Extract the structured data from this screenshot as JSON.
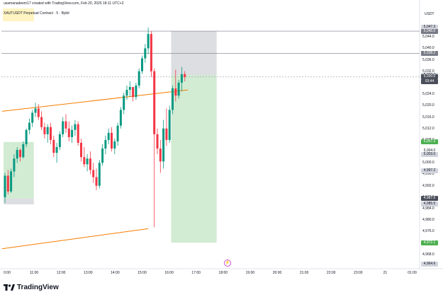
{
  "header": {
    "published": "usamanadeem17 created with TradingView.com, Feb 20, 2026 18:11 UTC+2"
  },
  "symbol": {
    "legend": "XAUTUSDT Perpetual Contract · 5 · Bybit"
  },
  "y_axis": {
    "currency": "USDT",
    "labels": [
      "5,044.0",
      "5,040.0",
      "5,036.0",
      "5,032.0",
      "5,028.0",
      "5,024.0",
      "5,020.0",
      "5,016.0",
      "5,012.0",
      "5,008.0",
      "5,004.0",
      "5,000.0",
      "4,996.0",
      "4,992.0",
      "4,988.0",
      "4,984.0",
      "4,980.0",
      "4,976.0",
      "4,972.0",
      "4,968.0"
    ],
    "tags": [
      {
        "text": "5,047.3",
        "bg": "#d1d4dc",
        "fg": "#131722",
        "price": 5047.3
      },
      {
        "text": "5,046.0",
        "bg": "#787b86",
        "fg": "#ffffff",
        "price": 5046.0
      },
      {
        "text": "5,038.2",
        "bg": "#787b86",
        "fg": "#ffffff",
        "price": 5038.2
      },
      {
        "text": "5,030.7",
        "bg": "#d1d4dc",
        "fg": "#131722",
        "price": 5030.7
      },
      {
        "text": "5,030.0",
        "bg": "#4a4e5a",
        "fg": "#ffffff",
        "price": 5030.0
      },
      {
        "text": "03:44",
        "bg": "#4a4e5a",
        "fg": "#ffffff",
        "price": 5028.3
      },
      {
        "text": "5,007.3",
        "bg": "#4caf50",
        "fg": "#ffffff",
        "price": 5007.3
      },
      {
        "text": "5,004.0",
        "bg": "#ffffff",
        "fg": "#131722",
        "price": 5004.2
      },
      {
        "text": "5,003.0",
        "bg": "#d1d4dc",
        "fg": "#131722",
        "price": 5002.8
      },
      {
        "text": "4,997.2",
        "bg": "#d1d4dc",
        "fg": "#131722",
        "price": 4997.2
      },
      {
        "text": "4,987.5",
        "bg": "#4a4e5a",
        "fg": "#ffffff",
        "price": 4987.5
      },
      {
        "text": "4,985.5",
        "bg": "#d1d4dc",
        "fg": "#131722",
        "price": 4985.5
      },
      {
        "text": "4,972.1",
        "bg": "#4caf50",
        "fg": "#ffffff",
        "price": 4972.1
      },
      {
        "text": "4,964.6",
        "bg": "#d1d4dc",
        "fg": "#131722",
        "price": 4964.6
      }
    ]
  },
  "x_axis": {
    "labels": [
      "0:00",
      "11:00",
      "12:00",
      "13:00",
      "14:00",
      "15:00",
      "16:00",
      "17:00",
      "18:00",
      "19:00",
      "20:00",
      "21:00",
      "22:00",
      "23:00",
      "21",
      "01:00"
    ]
  },
  "chart_data": {
    "type": "candlestick",
    "ylim": [
      4964,
      5048
    ],
    "up_color": "#089981",
    "down_color": "#f23645",
    "trendline_color": "#f57c00",
    "candles": [
      [
        4988.0,
        4996.5,
        4986.0,
        4995.5
      ],
      [
        4995.5,
        4997.5,
        4989.0,
        4990.0
      ],
      [
        4990.0,
        4998.0,
        4989.5,
        4997.0
      ],
      [
        4997.0,
        5003.0,
        4995.0,
        5001.5
      ],
      [
        5001.5,
        5005.5,
        5000.0,
        5004.5
      ],
      [
        5004.5,
        5005.0,
        5000.5,
        5002.0
      ],
      [
        5002.0,
        5007.5,
        5001.5,
        5006.5
      ],
      [
        5006.5,
        5012.0,
        5005.5,
        5011.5
      ],
      [
        5011.5,
        5015.5,
        5010.0,
        5014.0
      ],
      [
        5014.0,
        5018.5,
        5012.5,
        5017.5
      ],
      [
        5017.5,
        5021.0,
        5016.0,
        5019.0
      ],
      [
        5019.0,
        5020.5,
        5015.0,
        5016.0
      ],
      [
        5016.0,
        5018.0,
        5011.5,
        5012.5
      ],
      [
        5012.5,
        5014.0,
        5008.5,
        5010.0
      ],
      [
        5010.0,
        5013.5,
        5007.0,
        5012.5
      ],
      [
        5012.5,
        5014.0,
        5006.5,
        5008.0
      ],
      [
        5008.0,
        5009.5,
        5002.0,
        5003.5
      ],
      [
        5003.5,
        5007.0,
        5000.0,
        5005.5
      ],
      [
        5005.5,
        5011.0,
        5004.5,
        5010.0
      ],
      [
        5010.0,
        5016.0,
        5009.0,
        5014.5
      ],
      [
        5014.5,
        5017.0,
        5010.5,
        5012.0
      ],
      [
        5012.0,
        5014.5,
        5007.5,
        5009.0
      ],
      [
        5009.0,
        5013.0,
        5007.0,
        5011.5
      ],
      [
        5011.5,
        5015.0,
        5009.5,
        5013.5
      ],
      [
        5013.5,
        5014.5,
        5006.0,
        5007.0
      ],
      [
        5007.0,
        5008.5,
        5000.5,
        5002.0
      ],
      [
        5002.0,
        5005.5,
        4998.5,
        4999.5
      ],
      [
        4999.5,
        5003.0,
        4997.0,
        5001.5
      ],
      [
        5001.5,
        5004.0,
        4996.0,
        4997.5
      ],
      [
        4997.5,
        5000.0,
        4993.0,
        4995.0
      ],
      [
        4995.0,
        4998.0,
        4990.5,
        4992.0
      ],
      [
        4992.0,
        5001.0,
        4991.0,
        5000.0
      ],
      [
        5000.0,
        5006.5,
        4999.0,
        5005.0
      ],
      [
        5005.0,
        5009.5,
        5003.0,
        5008.0
      ],
      [
        5008.0,
        5012.0,
        5006.5,
        5010.5
      ],
      [
        5010.5,
        5012.5,
        5004.0,
        5005.0
      ],
      [
        5005.0,
        5008.5,
        5003.0,
        5007.5
      ],
      [
        5007.5,
        5014.0,
        5006.0,
        5013.0
      ],
      [
        5013.0,
        5019.5,
        5012.0,
        5018.5
      ],
      [
        5018.5,
        5024.5,
        5017.0,
        5023.5
      ],
      [
        5023.5,
        5027.0,
        5022.0,
        5025.5
      ],
      [
        5025.5,
        5028.5,
        5023.0,
        5026.5
      ],
      [
        5026.5,
        5026.5,
        5021.5,
        5023.0
      ],
      [
        5023.0,
        5028.0,
        5022.0,
        5027.0
      ],
      [
        5027.0,
        5033.0,
        5026.0,
        5032.0
      ],
      [
        5032.0,
        5037.5,
        5031.0,
        5036.5
      ],
      [
        5036.5,
        5041.5,
        5035.0,
        5040.0
      ],
      [
        5040.0,
        5047.3,
        5038.0,
        5045.0
      ],
      [
        5045.0,
        5046.0,
        5030.0,
        5032.0
      ],
      [
        5032.0,
        5033.0,
        4977.5,
        5010.0
      ],
      [
        5010.0,
        5012.0,
        5003.0,
        5005.0
      ],
      [
        5005.0,
        5008.0,
        4996.5,
        5000.5
      ],
      [
        5000.5,
        5015.0,
        4998.0,
        5012.0
      ],
      [
        5012.0,
        5019.0,
        5006.0,
        5008.0
      ],
      [
        5008.0,
        5020.0,
        5007.0,
        5018.5
      ],
      [
        5018.5,
        5027.0,
        5017.0,
        5026.0
      ],
      [
        5026.0,
        5032.5,
        5021.5,
        5023.5
      ],
      [
        5023.5,
        5029.0,
        5022.5,
        5028.0
      ],
      [
        5028.0,
        5033.5,
        5025.0,
        5031.0
      ],
      [
        5031.0,
        5032.0,
        5028.5,
        5030.0
      ]
    ],
    "trendlines": [
      {
        "from": [
          0,
          5018.0
        ],
        "to": [
          60,
          5025.5
        ]
      },
      {
        "from": [
          0,
          4970.0
        ],
        "to": [
          47,
          4977.0
        ]
      }
    ],
    "hlines": [
      5046.0,
      5038.2
    ],
    "current_price": 5030.0,
    "long_positions": [
      {
        "start": 0,
        "end": 9,
        "top": 5007.3,
        "entry": 4987.5,
        "bottom": 4985.5
      },
      {
        "start": 55,
        "end": 69,
        "top": 5046.0,
        "entry": 5030.7,
        "bottom": 4972.1
      }
    ]
  }
}
